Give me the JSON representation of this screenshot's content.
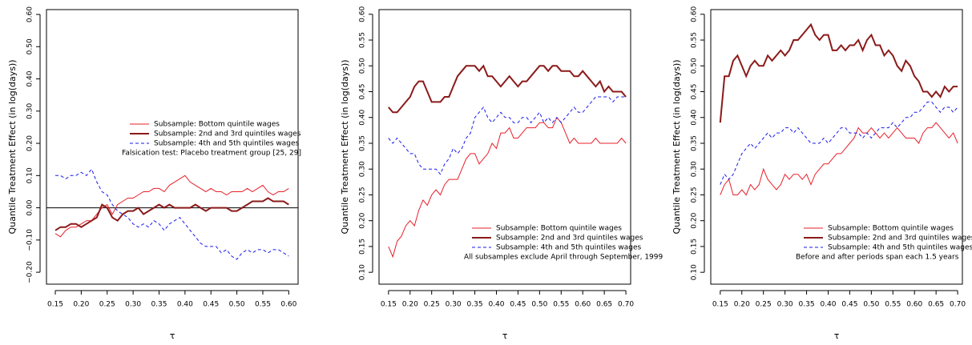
{
  "chart_data": [
    {
      "type": "line",
      "x": [
        0.15,
        0.16,
        0.17,
        0.18,
        0.19,
        0.2,
        0.21,
        0.22,
        0.23,
        0.24,
        0.25,
        0.26,
        0.27,
        0.28,
        0.29,
        0.3,
        0.31,
        0.32,
        0.33,
        0.34,
        0.35,
        0.36,
        0.37,
        0.38,
        0.39,
        0.4,
        0.41,
        0.42,
        0.43,
        0.44,
        0.45,
        0.46,
        0.47,
        0.48,
        0.49,
        0.5,
        0.51,
        0.52,
        0.53,
        0.54,
        0.55,
        0.56,
        0.57,
        0.58,
        0.59,
        0.6
      ],
      "series": [
        {
          "name": "Subsample: Bottom quintile wages",
          "color": "#e8202a",
          "linewidth": 1,
          "linestyle": "solid",
          "values": [
            -0.08,
            -0.09,
            -0.07,
            -0.06,
            -0.06,
            -0.05,
            -0.04,
            -0.04,
            -0.02,
            0.0,
            0.01,
            -0.02,
            0.01,
            0.02,
            0.03,
            0.03,
            0.04,
            0.05,
            0.05,
            0.06,
            0.06,
            0.05,
            0.07,
            0.08,
            0.09,
            0.1,
            0.08,
            0.07,
            0.06,
            0.05,
            0.06,
            0.05,
            0.05,
            0.04,
            0.05,
            0.05,
            0.05,
            0.06,
            0.05,
            0.06,
            0.07,
            0.05,
            0.04,
            0.05,
            0.05,
            0.06
          ]
        },
        {
          "name": "Subsample: 2nd and 3rd quintiles wages",
          "color": "#8b1a1a",
          "linewidth": 2,
          "linestyle": "solid",
          "values": [
            -0.07,
            -0.06,
            -0.06,
            -0.05,
            -0.05,
            -0.06,
            -0.05,
            -0.04,
            -0.03,
            0.01,
            0.0,
            -0.03,
            -0.04,
            -0.02,
            -0.01,
            -0.01,
            0.0,
            -0.02,
            -0.01,
            0.0,
            0.01,
            0.0,
            0.01,
            0.0,
            0.0,
            0.0,
            0.0,
            0.01,
            0.0,
            -0.01,
            0.0,
            0.0,
            0.0,
            0.0,
            -0.01,
            -0.01,
            0.0,
            0.01,
            0.02,
            0.02,
            0.02,
            0.03,
            0.02,
            0.02,
            0.02,
            0.01
          ]
        },
        {
          "name": "Subsample: 4th and 5th quintiles wages",
          "color": "#1a1aee",
          "linewidth": 1,
          "linestyle": "dashed",
          "values": [
            0.1,
            0.1,
            0.09,
            0.1,
            0.1,
            0.11,
            0.1,
            0.12,
            0.08,
            0.05,
            0.04,
            0.01,
            -0.01,
            -0.02,
            -0.03,
            -0.05,
            -0.06,
            -0.05,
            -0.06,
            -0.04,
            -0.05,
            -0.07,
            -0.05,
            -0.04,
            -0.03,
            -0.05,
            -0.07,
            -0.09,
            -0.11,
            -0.12,
            -0.12,
            -0.12,
            -0.14,
            -0.13,
            -0.15,
            -0.16,
            -0.14,
            -0.13,
            -0.14,
            -0.13,
            -0.13,
            -0.14,
            -0.13,
            -0.13,
            -0.14,
            -0.15
          ]
        }
      ],
      "note": "Falsication test: Placebo treatment group [25, 29]",
      "legend": "center",
      "hline": 0,
      "xlabel": "τ",
      "ylabel": "Quantile Treatment Effect (in log(days))",
      "xlim": [
        0.133,
        0.618
      ],
      "ylim": [
        -0.237,
        0.615
      ],
      "xticks": [
        {
          "value": 0.15,
          "label": "0.15"
        },
        {
          "value": 0.2,
          "label": "0.20"
        },
        {
          "value": 0.25,
          "label": "0.25"
        },
        {
          "value": 0.3,
          "label": "0.30"
        },
        {
          "value": 0.35,
          "label": "0.35"
        },
        {
          "value": 0.4,
          "label": "0.40"
        },
        {
          "value": 0.45,
          "label": "0.45"
        },
        {
          "value": 0.5,
          "label": "0.50"
        },
        {
          "value": 0.55,
          "label": "0.55"
        },
        {
          "value": 0.6,
          "label": "0.60"
        }
      ],
      "yticks": [
        {
          "value": -0.2,
          "label": "−0.20"
        },
        {
          "value": -0.1,
          "label": "−0.10"
        },
        {
          "value": 0,
          "label": "0.00"
        },
        {
          "value": 0.1,
          "label": "0.10"
        },
        {
          "value": 0.2,
          "label": "0.20"
        },
        {
          "value": 0.3,
          "label": "0.30"
        },
        {
          "value": 0.4,
          "label": "0.40"
        },
        {
          "value": 0.5,
          "label": "0.50"
        },
        {
          "value": 0.6,
          "label": "0.60"
        }
      ]
    },
    {
      "type": "line",
      "x": [
        0.15,
        0.16,
        0.17,
        0.18,
        0.19,
        0.2,
        0.21,
        0.22,
        0.23,
        0.24,
        0.25,
        0.26,
        0.27,
        0.28,
        0.29,
        0.3,
        0.31,
        0.32,
        0.33,
        0.34,
        0.35,
        0.36,
        0.37,
        0.38,
        0.39,
        0.4,
        0.41,
        0.42,
        0.43,
        0.44,
        0.45,
        0.46,
        0.47,
        0.48,
        0.49,
        0.5,
        0.51,
        0.52,
        0.53,
        0.54,
        0.55,
        0.56,
        0.57,
        0.58,
        0.59,
        0.6,
        0.61,
        0.62,
        0.63,
        0.64,
        0.65,
        0.66,
        0.67,
        0.68,
        0.69,
        0.7
      ],
      "series": [
        {
          "name": "Subsample: Bottom quintile wages",
          "color": "#e8202a",
          "linewidth": 1,
          "linestyle": "solid",
          "values": [
            0.15,
            0.13,
            0.16,
            0.17,
            0.19,
            0.2,
            0.19,
            0.22,
            0.24,
            0.23,
            0.25,
            0.26,
            0.25,
            0.27,
            0.28,
            0.28,
            0.28,
            0.3,
            0.32,
            0.33,
            0.33,
            0.31,
            0.32,
            0.33,
            0.35,
            0.34,
            0.37,
            0.37,
            0.38,
            0.36,
            0.36,
            0.37,
            0.38,
            0.38,
            0.38,
            0.39,
            0.39,
            0.38,
            0.38,
            0.4,
            0.39,
            0.37,
            0.35,
            0.36,
            0.35,
            0.35,
            0.35,
            0.35,
            0.36,
            0.35,
            0.35,
            0.35,
            0.35,
            0.35,
            0.36,
            0.35
          ]
        },
        {
          "name": "Subsample: 2nd and 3rd quintiles wages",
          "color": "#8b1a1a",
          "linewidth": 2,
          "linestyle": "solid",
          "values": [
            0.42,
            0.41,
            0.41,
            0.42,
            0.43,
            0.44,
            0.46,
            0.47,
            0.47,
            0.45,
            0.43,
            0.43,
            0.43,
            0.44,
            0.44,
            0.46,
            0.48,
            0.49,
            0.5,
            0.5,
            0.5,
            0.49,
            0.5,
            0.48,
            0.48,
            0.47,
            0.46,
            0.47,
            0.48,
            0.47,
            0.46,
            0.47,
            0.47,
            0.48,
            0.49,
            0.5,
            0.5,
            0.49,
            0.5,
            0.5,
            0.49,
            0.49,
            0.49,
            0.48,
            0.48,
            0.49,
            0.48,
            0.47,
            0.46,
            0.47,
            0.45,
            0.46,
            0.45,
            0.45,
            0.45,
            0.44
          ]
        },
        {
          "name": "Subsample: 4th and 5th quintiles wages",
          "color": "#1a1aee",
          "linewidth": 1,
          "linestyle": "dashed",
          "values": [
            0.36,
            0.35,
            0.36,
            0.35,
            0.34,
            0.33,
            0.33,
            0.31,
            0.3,
            0.3,
            0.3,
            0.3,
            0.29,
            0.31,
            0.32,
            0.34,
            0.33,
            0.34,
            0.36,
            0.37,
            0.4,
            0.41,
            0.42,
            0.4,
            0.39,
            0.4,
            0.41,
            0.4,
            0.4,
            0.39,
            0.39,
            0.4,
            0.4,
            0.39,
            0.4,
            0.41,
            0.39,
            0.4,
            0.39,
            0.4,
            0.39,
            0.4,
            0.41,
            0.42,
            0.41,
            0.41,
            0.42,
            0.43,
            0.44,
            0.44,
            0.44,
            0.44,
            0.43,
            0.44,
            0.44,
            0.44
          ]
        }
      ],
      "note": "All subsamples exclude April through September, 1999",
      "legend": "bottomright",
      "xlabel": "τ",
      "ylabel": "Quantile Treatment Effect (in log(days))",
      "xlim": [
        0.128,
        0.711
      ],
      "ylim": [
        0.077,
        0.609
      ],
      "xticks": [
        {
          "value": 0.15,
          "label": "0.15"
        },
        {
          "value": 0.2,
          "label": "0.20"
        },
        {
          "value": 0.25,
          "label": "0.25"
        },
        {
          "value": 0.3,
          "label": "0.30"
        },
        {
          "value": 0.35,
          "label": "0.35"
        },
        {
          "value": 0.4,
          "label": "0.40"
        },
        {
          "value": 0.45,
          "label": "0.45"
        },
        {
          "value": 0.5,
          "label": "0.50"
        },
        {
          "value": 0.55,
          "label": "0.55"
        },
        {
          "value": 0.6,
          "label": "0.60"
        },
        {
          "value": 0.65,
          "label": "0.65"
        },
        {
          "value": 0.7,
          "label": "0.70"
        }
      ],
      "yticks": [
        {
          "value": 0.1,
          "label": "0.10"
        },
        {
          "value": 0.15,
          "label": "0.15"
        },
        {
          "value": 0.2,
          "label": "0.20"
        },
        {
          "value": 0.25,
          "label": "0.25"
        },
        {
          "value": 0.3,
          "label": "0.30"
        },
        {
          "value": 0.35,
          "label": "0.35"
        },
        {
          "value": 0.4,
          "label": "0.40"
        },
        {
          "value": 0.45,
          "label": "0.45"
        },
        {
          "value": 0.5,
          "label": "0.50"
        },
        {
          "value": 0.55,
          "label": "0.55"
        },
        {
          "value": 0.6,
          "label": "0.60"
        }
      ]
    },
    {
      "type": "line",
      "x": [
        0.15,
        0.16,
        0.17,
        0.18,
        0.19,
        0.2,
        0.21,
        0.22,
        0.23,
        0.24,
        0.25,
        0.26,
        0.27,
        0.28,
        0.29,
        0.3,
        0.31,
        0.32,
        0.33,
        0.34,
        0.35,
        0.36,
        0.37,
        0.38,
        0.39,
        0.4,
        0.41,
        0.42,
        0.43,
        0.44,
        0.45,
        0.46,
        0.47,
        0.48,
        0.49,
        0.5,
        0.51,
        0.52,
        0.53,
        0.54,
        0.55,
        0.56,
        0.57,
        0.58,
        0.59,
        0.6,
        0.61,
        0.62,
        0.63,
        0.64,
        0.65,
        0.66,
        0.67,
        0.68,
        0.69,
        0.7
      ],
      "series": [
        {
          "name": "Subsample: Bottom quintile wages",
          "color": "#e8202a",
          "linewidth": 1,
          "linestyle": "solid",
          "values": [
            0.25,
            0.27,
            0.28,
            0.25,
            0.25,
            0.26,
            0.25,
            0.27,
            0.26,
            0.27,
            0.3,
            0.28,
            0.27,
            0.26,
            0.27,
            0.29,
            0.28,
            0.29,
            0.29,
            0.28,
            0.29,
            0.27,
            0.29,
            0.3,
            0.31,
            0.31,
            0.32,
            0.33,
            0.33,
            0.34,
            0.35,
            0.36,
            0.38,
            0.37,
            0.37,
            0.38,
            0.37,
            0.36,
            0.37,
            0.36,
            0.37,
            0.38,
            0.37,
            0.36,
            0.36,
            0.36,
            0.35,
            0.37,
            0.38,
            0.38,
            0.39,
            0.38,
            0.37,
            0.36,
            0.37,
            0.35
          ]
        },
        {
          "name": "Subsample: 2nd and 3rd quintiles wages",
          "color": "#8b1a1a",
          "linewidth": 2,
          "linestyle": "solid",
          "values": [
            0.39,
            0.48,
            0.48,
            0.51,
            0.52,
            0.5,
            0.48,
            0.5,
            0.51,
            0.5,
            0.5,
            0.52,
            0.51,
            0.52,
            0.53,
            0.52,
            0.53,
            0.55,
            0.55,
            0.56,
            0.57,
            0.58,
            0.56,
            0.55,
            0.56,
            0.56,
            0.53,
            0.53,
            0.54,
            0.53,
            0.54,
            0.54,
            0.55,
            0.53,
            0.55,
            0.56,
            0.54,
            0.54,
            0.52,
            0.53,
            0.52,
            0.5,
            0.49,
            0.51,
            0.5,
            0.48,
            0.47,
            0.45,
            0.45,
            0.44,
            0.45,
            0.44,
            0.46,
            0.45,
            0.46,
            0.46
          ]
        },
        {
          "name": "Subsample: 4th and 5th quintiles wages",
          "color": "#1a1aee",
          "linewidth": 1,
          "linestyle": "dashed",
          "values": [
            0.27,
            0.29,
            0.28,
            0.29,
            0.31,
            0.33,
            0.34,
            0.35,
            0.34,
            0.35,
            0.36,
            0.37,
            0.36,
            0.37,
            0.37,
            0.38,
            0.38,
            0.37,
            0.38,
            0.37,
            0.36,
            0.35,
            0.35,
            0.35,
            0.36,
            0.35,
            0.36,
            0.37,
            0.38,
            0.38,
            0.37,
            0.37,
            0.37,
            0.36,
            0.37,
            0.36,
            0.37,
            0.38,
            0.38,
            0.38,
            0.39,
            0.38,
            0.39,
            0.4,
            0.4,
            0.41,
            0.41,
            0.42,
            0.43,
            0.43,
            0.42,
            0.41,
            0.42,
            0.42,
            0.41,
            0.42
          ]
        }
      ],
      "note": "Before and after periods span each 1.5 years",
      "legend": "bottomright",
      "xlabel": "τ",
      "ylabel": "Quantile Treatment Effect (in log(days))",
      "xlim": [
        0.128,
        0.711
      ],
      "ylim": [
        0.077,
        0.609
      ],
      "xticks": [
        {
          "value": 0.15,
          "label": "0.15"
        },
        {
          "value": 0.2,
          "label": "0.20"
        },
        {
          "value": 0.25,
          "label": "0.25"
        },
        {
          "value": 0.3,
          "label": "0.30"
        },
        {
          "value": 0.35,
          "label": "0.35"
        },
        {
          "value": 0.4,
          "label": "0.40"
        },
        {
          "value": 0.45,
          "label": "0.45"
        },
        {
          "value": 0.5,
          "label": "0.50"
        },
        {
          "value": 0.55,
          "label": "0.55"
        },
        {
          "value": 0.6,
          "label": "0.60"
        },
        {
          "value": 0.65,
          "label": "0.65"
        },
        {
          "value": 0.7,
          "label": "0.70"
        }
      ],
      "yticks": [
        {
          "value": 0.1,
          "label": "0.10"
        },
        {
          "value": 0.15,
          "label": "0.15"
        },
        {
          "value": 0.2,
          "label": "0.20"
        },
        {
          "value": 0.25,
          "label": "0.25"
        },
        {
          "value": 0.3,
          "label": "0.30"
        },
        {
          "value": 0.35,
          "label": "0.35"
        },
        {
          "value": 0.4,
          "label": "0.40"
        },
        {
          "value": 0.45,
          "label": "0.45"
        },
        {
          "value": 0.5,
          "label": "0.50"
        },
        {
          "value": 0.55,
          "label": "0.55"
        },
        {
          "value": 0.6,
          "label": "0.60"
        }
      ]
    }
  ]
}
